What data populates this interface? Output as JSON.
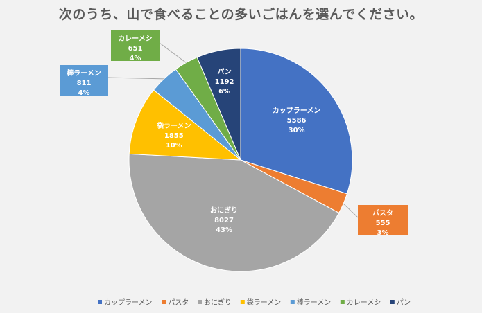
{
  "chart_data": {
    "type": "pie",
    "title": "次のうち、山で食べることの多いごはんを選んでください。",
    "categories": [
      "カップラーメン",
      "パスタ",
      "おにぎり",
      "袋ラーメン",
      "棒ラーメン",
      "カレーメシ",
      "パン"
    ],
    "values": [
      5586,
      555,
      8027,
      1855,
      811,
      651,
      1192
    ],
    "value_labels": [
      "5586",
      "555",
      "8027",
      "1855",
      "811",
      "651",
      "1192"
    ],
    "percent_labels": [
      "30%",
      "3%",
      "43%",
      "10%",
      "4%",
      "4%",
      "6%"
    ],
    "colors": [
      "#4472c4",
      "#ed7d31",
      "#a5a5a5",
      "#ffc000",
      "#5b9bd5",
      "#70ad47",
      "#264478"
    ],
    "legend_position": "bottom",
    "start_angle": "12 o'clock, clockwise"
  }
}
